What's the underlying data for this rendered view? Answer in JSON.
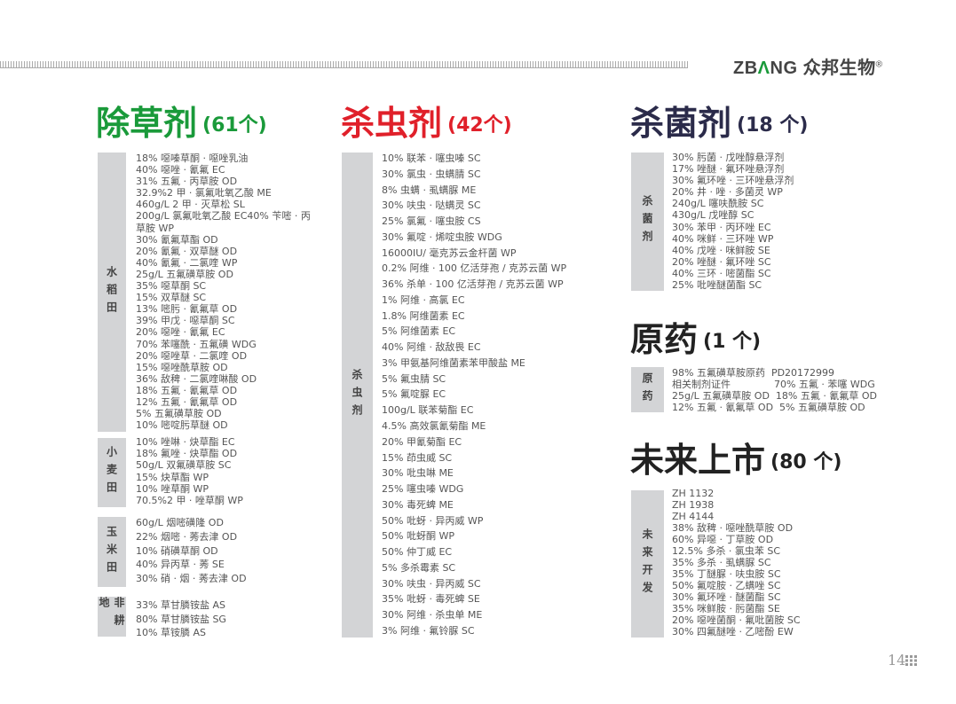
{
  "header": {
    "brand_latin_1": "ZB",
    "brand_latin_tri": "Λ",
    "brand_latin_2": "NG",
    "brand_cn": "众邦生物",
    "reg": "®"
  },
  "colors": {
    "herbicide": "#1a9a3a",
    "insecticide": "#e0202a",
    "fungicide": "#2b2b4a",
    "dark": "#222222",
    "bar": "#d3d4d6"
  },
  "herbicide": {
    "title": "除草剂",
    "count": "(61个)",
    "groups": [
      {
        "label": "水稻田",
        "items": [
          "18% 噁嗪草酮 · 噁唑乳油",
          "40% 噁唑 · 氰氟 EC",
          "31% 五氟 · 丙草胺 OD",
          "32.9%2 甲 · 氯氟吡氧乙酸 ME",
          "460g/L 2 甲 · 灭草松 SL",
          "200g/L 氯氟吡氧乙酸 EC40% 苄嘧 · 丙",
          "草胺 WP",
          "30% 氰氟草酯 OD",
          "20% 氰氟 · 双草醚 OD",
          "40% 氰氟 · 二氯喹 WP",
          "25g/L 五氟磺草胺 OD",
          "35% 噁草酮 SC",
          "15% 双草醚 SC",
          "13% 嘧肟 · 氰氟草 OD",
          "39% 甲戊 · 噁草酮 SC",
          "20% 噁唑 · 氰氟 EC",
          "70% 苯噻酰 · 五氟磺 WDG",
          "20% 噁唑草 · 二氯喹 OD",
          "15% 噁唑酰草胺 OD",
          "36% 敌稗 · 二氯喹啉酸 OD",
          "18% 五氟 · 氰氟草 OD",
          "12% 五氟 · 氰氟草 OD",
          "5% 五氟磺草胺 OD",
          "10% 嘧啶肟草醚 OD"
        ]
      },
      {
        "label": "小麦田",
        "items": [
          "10% 唑啉 · 炔草酯 EC",
          "18% 氟唑 · 炔草酯 OD",
          "50g/L 双氟磺草胺 SC",
          "15% 炔草酯 WP",
          "10% 唑草酮 WP",
          "70.5%2 甲 · 唑草酮 WP"
        ]
      },
      {
        "label": "玉米田",
        "items": [
          "60g/L 烟嘧磺隆 OD",
          "22% 烟嘧 · 莠去津 OD",
          "10% 硝磺草酮 OD",
          "40% 异丙草 · 莠 SE",
          "30% 硝 · 烟 · 莠去津 OD"
        ]
      },
      {
        "label": "非耕地",
        "items": [
          "33% 草甘膦铵盐 AS",
          "80% 草甘膦铵盐 SG",
          "10% 草铵膦 AS"
        ]
      }
    ]
  },
  "insecticide": {
    "title": "杀虫剂",
    "count": "(42个)",
    "label": "杀虫剂",
    "items": [
      "10% 联苯 · 噻虫嗪 SC",
      "30% 氯虫 · 虫螨腈 SC",
      "8% 虫螨 · 虱螨脲 ME",
      "30% 呋虫 · 哒螨灵 SC",
      "25% 氯氟 · 噻虫胺 CS",
      "30% 氟啶 · 烯啶虫胺 WDG",
      "16000IU/ 毫克苏云金杆菌 WP",
      "0.2% 阿维 · 100 亿活芽孢 / 克苏云菌 WP",
      "36% 杀单 · 100 亿活芽孢 / 克苏云菌 WP",
      "1% 阿维 · 高氯 EC",
      "1.8% 阿维菌素 EC",
      "5% 阿维菌素 EC",
      "40% 阿维 · 敌敌畏 EC",
      "3% 甲氨基阿维菌素苯甲酸盐 ME",
      "5% 氟虫腈 SC",
      "5% 氟啶脲 EC",
      "100g/L 联苯菊酯 EC",
      "4.5% 高效氯氰菊酯 ME",
      "20% 甲氰菊酯 EC",
      "15% 茚虫威 SC",
      "30% 吡虫啉 ME",
      "25% 噻虫嗪 WDG",
      "30% 毒死蜱 ME",
      "50% 吡蚜 · 异丙威 WP",
      "50% 吡蚜酮 WP",
      "50% 仲丁威 EC",
      "5% 多杀霉素 SC",
      "30% 呋虫 · 异丙威 SC",
      "35% 吡蚜 · 毒死蜱 SE",
      "30% 阿维 · 杀虫单 ME",
      "3% 阿维 · 氟铃脲 SC"
    ]
  },
  "fungicide": {
    "title": "杀菌剂",
    "count": "(18 个)",
    "label": "杀菌剂",
    "items": [
      "30% 肟菌 · 戊唑醇悬浮剂",
      "17% 唑醚 · 氟环唑悬浮剂",
      "30% 氟环唑 · 三环唑悬浮剂",
      "20% 井 · 唑 · 多菌灵 WP",
      "240g/L 噻呋酰胺 SC",
      "430g/L 戊唑醇 SC",
      "30% 苯甲 · 丙环唑 EC",
      "40% 咪鲜 · 三环唑 WP",
      "40% 戊唑 · 咪鲜胺 SE",
      "20% 唑醚 · 氟环唑 SC",
      "40% 三环 · 嘧菌酯 SC",
      "25% 吡唑醚菌酯 SC"
    ]
  },
  "technical": {
    "title": "原药",
    "count": "(1 个)",
    "label": "原药",
    "items": [
      "98% 五氟磺草胺原药  PD20172999",
      "相关制剂证件              70% 五氟 · 苯噻 WDG",
      "25g/L 五氟磺草胺 OD  18% 五氟 · 氰氟草 OD",
      "12% 五氟 · 氰氟草 OD  5% 五氟磺草胺 OD"
    ]
  },
  "future": {
    "title": "未来上市",
    "count": "(80 个)",
    "label": "未来开发",
    "items": [
      "ZH 1132",
      "ZH 1938",
      "ZH 4144",
      "38% 敌稗 · 噁唑酰草胺 OD",
      "60% 异噁 · 丁草胺 OD",
      "12.5% 多杀 · 氯虫苯 SC",
      "35% 多杀 · 虱螨脲 SC",
      "35% 丁醚脲 · 呋虫胺 SC",
      "50% 氟啶胺 · 乙螨唑 SC",
      "30% 氟环唑 · 醚菌酯 SC",
      "35% 咪鲜胺 · 肟菌酯 SE",
      "20% 噁唑菌酮 · 氟吡菌胺 SC",
      "30% 四氟醚唑 · 乙嘧酚 EW"
    ]
  },
  "footer": {
    "page_number": "14"
  }
}
